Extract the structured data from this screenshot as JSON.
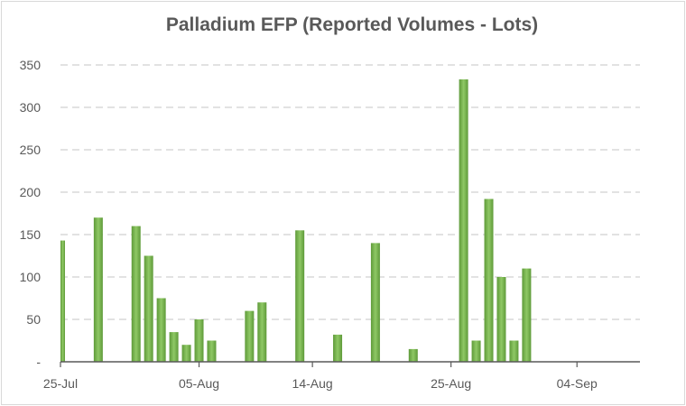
{
  "chart_data": {
    "type": "bar",
    "title": "Palladium EFP (Reported Volumes - Lots)",
    "xlabel": "",
    "ylabel": "",
    "ylim": [
      0,
      350
    ],
    "yticks": [
      0,
      50,
      100,
      150,
      200,
      250,
      300,
      350
    ],
    "ytick_labels": [
      "-",
      "50",
      "100",
      "150",
      "200",
      "250",
      "300",
      "350"
    ],
    "grid": "horizontal-dashed",
    "legend": "none",
    "bar_color": "#70ad47",
    "x_range": [
      "2025-07-25",
      "2025-09-08"
    ],
    "xticks": [
      {
        "date": "2025-07-25",
        "label": "25-Jul"
      },
      {
        "date": "2025-08-05",
        "label": "05-Aug"
      },
      {
        "date": "2025-08-14",
        "label": "14-Aug"
      },
      {
        "date": "2025-08-25",
        "label": "25-Aug"
      },
      {
        "date": "2025-09-04",
        "label": "04-Sep"
      }
    ],
    "points": [
      {
        "date": "2025-07-25",
        "value": 143
      },
      {
        "date": "2025-07-28",
        "value": 170
      },
      {
        "date": "2025-07-31",
        "value": 160
      },
      {
        "date": "2025-08-01",
        "value": 125
      },
      {
        "date": "2025-08-02",
        "value": 75
      },
      {
        "date": "2025-08-03",
        "value": 35
      },
      {
        "date": "2025-08-04",
        "value": 20
      },
      {
        "date": "2025-08-05",
        "value": 50
      },
      {
        "date": "2025-08-06",
        "value": 25
      },
      {
        "date": "2025-08-09",
        "value": 60
      },
      {
        "date": "2025-08-10",
        "value": 70
      },
      {
        "date": "2025-08-13",
        "value": 155
      },
      {
        "date": "2025-08-16",
        "value": 32
      },
      {
        "date": "2025-08-19",
        "value": 140
      },
      {
        "date": "2025-08-22",
        "value": 15
      },
      {
        "date": "2025-08-26",
        "value": 333
      },
      {
        "date": "2025-08-27",
        "value": 25
      },
      {
        "date": "2025-08-28",
        "value": 192
      },
      {
        "date": "2025-08-29",
        "value": 100
      },
      {
        "date": "2025-08-30",
        "value": 25
      },
      {
        "date": "2025-08-31",
        "value": 110
      }
    ]
  }
}
